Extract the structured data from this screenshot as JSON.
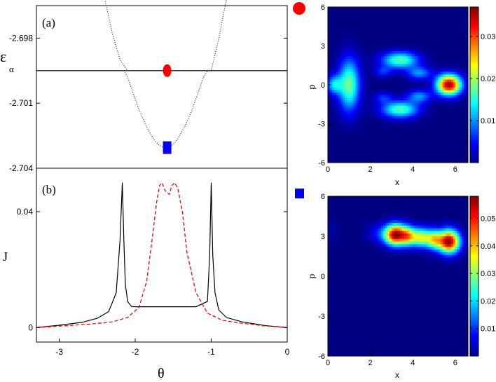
{
  "chart_data": [
    {
      "type": "line",
      "panel_label": "(a)",
      "ylabel": "ε",
      "ylabel_sub": "α",
      "xlim": [
        -3.3,
        0
      ],
      "ylim": [
        -2.704,
        -2.6965
      ],
      "yticks": [
        -2.698,
        -2.701,
        -2.704
      ],
      "ytick_labels": [
        "-2.698",
        "-2.701",
        "-2.704"
      ],
      "series": [
        {
          "style": "dotted-black",
          "x": [
            -2.4,
            -2.3,
            -2.2,
            -2.1,
            -2.0,
            -1.9,
            -1.8,
            -1.7,
            -1.6,
            -1.5,
            -1.4,
            -1.3,
            -1.2,
            -1.1,
            -1.0,
            -0.9,
            -0.8
          ],
          "y": [
            -2.6962,
            -2.6978,
            -2.699,
            -2.6995,
            -2.6995,
            -2.6995,
            -2.6995,
            -2.6995,
            -2.6995,
            -2.6995,
            -2.6995,
            -2.6995,
            -2.6995,
            -2.6995,
            -2.6995,
            -2.698,
            -2.6962
          ]
        },
        {
          "style": "dotted-black",
          "x": [
            -2.15,
            -2.1,
            -2.05,
            -2.0,
            -1.95,
            -1.9,
            -1.85,
            -1.8,
            -1.75,
            -1.7,
            -1.65,
            -1.6,
            -1.55,
            -1.5,
            -1.45,
            -1.4,
            -1.35,
            -1.3,
            -1.25,
            -1.2,
            -1.15,
            -1.1,
            -1.05,
            -1.0
          ],
          "y": [
            -2.6995,
            -2.6998,
            -2.7003,
            -2.7008,
            -2.7013,
            -2.7017,
            -2.7021,
            -2.7024,
            -2.7027,
            -2.7029,
            -2.703,
            -2.70305,
            -2.703,
            -2.7029,
            -2.7027,
            -2.7024,
            -2.7021,
            -2.7017,
            -2.7013,
            -2.7008,
            -2.7003,
            -2.6998,
            -2.6995,
            -2.6995
          ]
        },
        {
          "style": "solid-black-flat",
          "x": [
            -3.3,
            -2.2,
            -2.15,
            -1.0,
            -0.95,
            0
          ],
          "y": [
            -2.6995,
            -2.6995,
            -2.6995,
            -2.6995,
            -2.6995,
            -2.6995
          ]
        }
      ],
      "markers": [
        {
          "shape": "circle",
          "color": "#ff0000",
          "x": -1.58,
          "y": -2.6995
        },
        {
          "shape": "square",
          "color": "#0000ff",
          "x": -1.58,
          "y": -2.70305
        }
      ]
    },
    {
      "type": "line",
      "panel_label": "(b)",
      "ylabel": "J",
      "xlabel": "θ",
      "xlim": [
        -3.3,
        0
      ],
      "ylim": [
        -0.005,
        0.055
      ],
      "xticks": [
        -3,
        -2,
        -1,
        0
      ],
      "xtick_labels": [
        "-3",
        "-2",
        "-1",
        "0"
      ],
      "yticks": [
        0,
        0.04
      ],
      "ytick_labels": [
        "0",
        "0.04"
      ],
      "series": [
        {
          "style": "solid-black",
          "x": [
            -3.3,
            -3.0,
            -2.7,
            -2.5,
            -2.35,
            -2.25,
            -2.2,
            -2.17,
            -2.15,
            -2.13,
            -2.1,
            -2.05,
            -2.0,
            -1.8,
            -1.6,
            -1.4,
            -1.2,
            -1.05,
            -1.02,
            -1.0,
            -0.98,
            -0.95,
            -0.9,
            -0.8,
            -0.6,
            -0.3,
            0
          ],
          "y": [
            0.0,
            0.0008,
            0.0018,
            0.0032,
            0.0055,
            0.012,
            0.03,
            0.05,
            0.03,
            0.015,
            0.009,
            0.0073,
            0.0072,
            0.0072,
            0.0072,
            0.0072,
            0.0072,
            0.009,
            0.025,
            0.05,
            0.025,
            0.012,
            0.006,
            0.0035,
            0.002,
            0.0007,
            0.0
          ]
        },
        {
          "style": "dashed-red",
          "x": [
            -3.3,
            -3.0,
            -2.6,
            -2.3,
            -2.1,
            -1.95,
            -1.85,
            -1.78,
            -1.72,
            -1.68,
            -1.65,
            -1.6,
            -1.55,
            -1.52,
            -1.48,
            -1.44,
            -1.38,
            -1.32,
            -1.2,
            -1.05,
            -0.85,
            -0.6,
            -0.3,
            0
          ],
          "y": [
            0.0,
            0.0005,
            0.0012,
            0.002,
            0.0035,
            0.007,
            0.016,
            0.03,
            0.043,
            0.049,
            0.05,
            0.047,
            0.046,
            0.049,
            0.05,
            0.048,
            0.04,
            0.026,
            0.012,
            0.005,
            0.0025,
            0.0015,
            0.0006,
            0.0
          ]
        }
      ]
    },
    {
      "type": "heatmap",
      "marker": {
        "shape": "circle",
        "color": "#ff0000"
      },
      "xlabel": "x",
      "ylabel": "p",
      "xlim": [
        0,
        6.6
      ],
      "ylim": [
        -6,
        6
      ],
      "xticks": [
        0,
        2,
        4,
        6
      ],
      "xtick_labels": [
        "0",
        "2",
        "4",
        "6"
      ],
      "yticks": [
        6,
        3,
        0,
        -3,
        -6
      ],
      "ytick_labels": [
        "6",
        "3",
        "0",
        "-3",
        "-6"
      ],
      "colorbar": {
        "min": 0.0,
        "max": 0.037,
        "ticks": [
          0.03,
          0.02,
          0.01
        ],
        "tick_labels": [
          "0.03",
          "0.02",
          "0.01"
        ]
      },
      "blobs": [
        {
          "x": 1.0,
          "p": 0.0,
          "sx": 0.35,
          "sp": 1.4,
          "amp": 0.018
        },
        {
          "x": 0.3,
          "p": 0.0,
          "sx": 0.25,
          "sp": 0.5,
          "amp": 0.012
        },
        {
          "x": 3.4,
          "p": 1.9,
          "sx": 0.6,
          "sp": 0.45,
          "amp": 0.017
        },
        {
          "x": 3.4,
          "p": -1.9,
          "sx": 0.6,
          "sp": 0.45,
          "amp": 0.017
        },
        {
          "x": 4.3,
          "p": 0.9,
          "sx": 0.4,
          "sp": 0.35,
          "amp": 0.01
        },
        {
          "x": 4.3,
          "p": -0.9,
          "sx": 0.4,
          "sp": 0.35,
          "amp": 0.01
        },
        {
          "x": 2.6,
          "p": 1.0,
          "sx": 0.3,
          "sp": 0.3,
          "amp": 0.006
        },
        {
          "x": 2.6,
          "p": -1.0,
          "sx": 0.3,
          "sp": 0.3,
          "amp": 0.006
        },
        {
          "x": 5.7,
          "p": 0.0,
          "sx": 0.4,
          "sp": 0.55,
          "amp": 0.036
        }
      ]
    },
    {
      "type": "heatmap",
      "marker": {
        "shape": "square",
        "color": "#0000ff"
      },
      "xlabel": "x",
      "ylabel": "p",
      "xlim": [
        0,
        6.6
      ],
      "ylim": [
        -6,
        6
      ],
      "xticks": [
        0,
        2,
        4,
        6
      ],
      "xtick_labels": [
        "0",
        "2",
        "4",
        "6"
      ],
      "yticks": [
        6,
        3,
        0,
        -3,
        -6
      ],
      "ytick_labels": [
        "6",
        "3",
        "0",
        "-3",
        "-6"
      ],
      "colorbar": {
        "min": 0.0,
        "max": 0.058,
        "ticks": [
          0.05,
          0.04,
          0.03,
          0.02,
          0.01
        ],
        "tick_labels": [
          "0.05",
          "0.04",
          "0.03",
          "0.02",
          "0.01"
        ]
      },
      "blobs": [
        {
          "x": 3.2,
          "p": 3.1,
          "sx": 0.35,
          "sp": 0.55,
          "amp": 0.055
        },
        {
          "x": 3.8,
          "p": 3.0,
          "sx": 0.25,
          "sp": 0.5,
          "amp": 0.03
        },
        {
          "x": 4.4,
          "p": 2.9,
          "sx": 0.3,
          "sp": 0.5,
          "amp": 0.033
        },
        {
          "x": 5.0,
          "p": 2.75,
          "sx": 0.25,
          "sp": 0.5,
          "amp": 0.03
        },
        {
          "x": 5.7,
          "p": 2.6,
          "sx": 0.35,
          "sp": 0.6,
          "amp": 0.058
        },
        {
          "x": 2.5,
          "p": 3.2,
          "sx": 0.45,
          "sp": 0.5,
          "amp": 0.008
        },
        {
          "x": 0.0,
          "p": 3.4,
          "sx": 0.4,
          "sp": 0.6,
          "amp": 0.002
        }
      ]
    }
  ]
}
